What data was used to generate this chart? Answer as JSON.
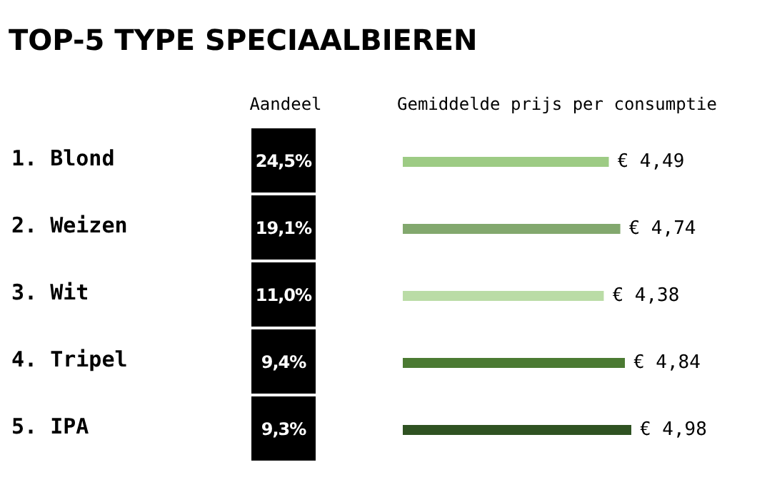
{
  "chart_data": [
    {
      "type": "other",
      "title": "TOP-5 TYPE SPECIAALBIEREN",
      "xlabel": "Aandeel",
      "categories": [
        "1. Blond",
        "2. Weizen",
        "3. Wit",
        "4. Tripel",
        "5. IPA"
      ],
      "values": [
        24.5,
        19.1,
        11.0,
        9.4,
        9.3
      ],
      "value_labels": [
        "24,5%",
        "19,1%",
        "11,0%",
        "9,4%",
        "9,3%"
      ],
      "color": "#000000"
    },
    {
      "type": "bar",
      "orientation": "horizontal",
      "xlabel": "Gemiddelde prijs per consumptie",
      "categories": [
        null,
        null,
        null,
        null,
        null
      ],
      "values": [
        4.49,
        4.74,
        4.38,
        4.84,
        4.98
      ],
      "colors": [
        "#9dcb84",
        "#82a86e",
        "#badca6",
        "#4b7a32",
        "#2f5222"
      ],
      "value_labels": [
        "€ 4,49",
        "€ 4,74",
        "€ 4,38",
        "€ 4,84",
        "€ 4,98"
      ],
      "tick_labels": false
    }
  ]
}
